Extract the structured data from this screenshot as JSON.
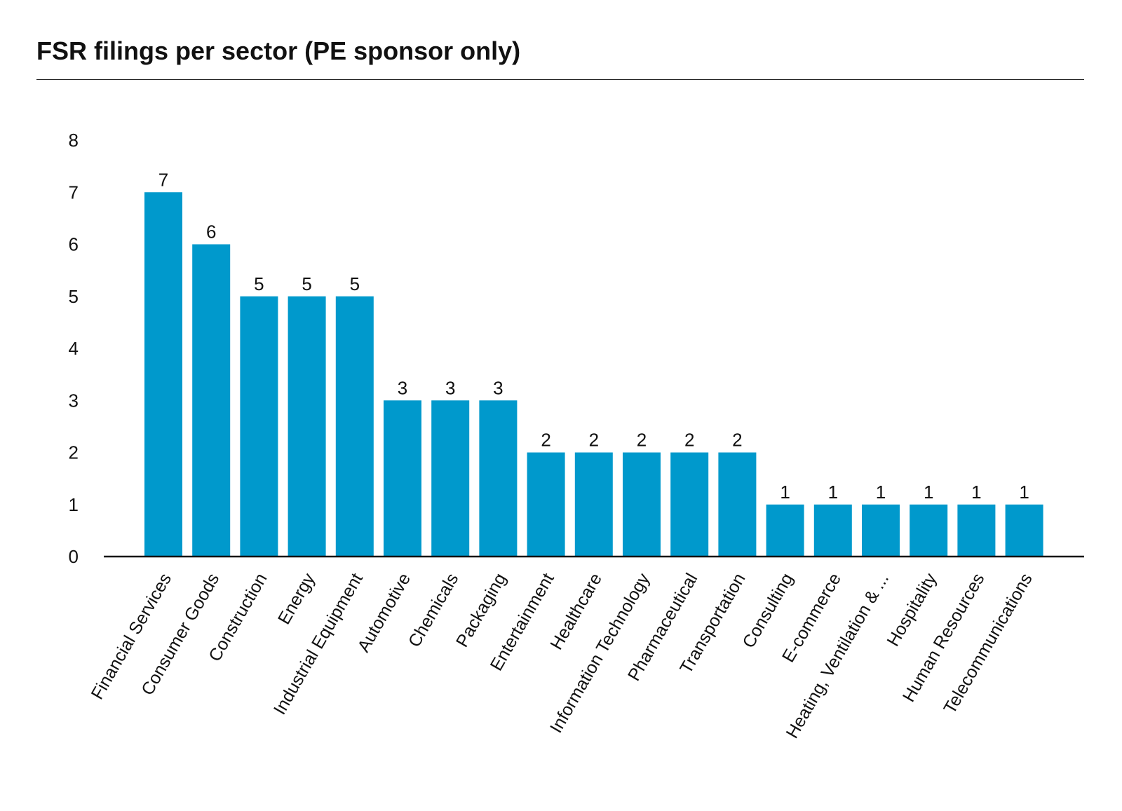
{
  "chart_data": {
    "type": "bar",
    "title": "FSR filings per sector (PE sponsor only)",
    "xlabel": "",
    "ylabel": "",
    "categories": [
      "Financial Services",
      "Consumer Goods",
      "Construction",
      "Energy",
      "Industrial Equipment",
      "Automotive",
      "Chemicals",
      "Packaging",
      "Entertainment",
      "Healthcare",
      "Information Technology",
      "Pharmaceutical",
      "Transportation",
      "Consulting",
      "E-commerce",
      "Heating, Ventilation & ...",
      "Hospitality",
      "Human Resources",
      "Telecommunications"
    ],
    "values": [
      7,
      6,
      5,
      5,
      5,
      3,
      3,
      3,
      2,
      2,
      2,
      2,
      2,
      1,
      1,
      1,
      1,
      1,
      1
    ],
    "ylim": [
      0,
      8
    ],
    "yticks": [
      "0",
      "1",
      "2",
      "3",
      "4",
      "5",
      "6",
      "7",
      "8"
    ],
    "grid": false,
    "legend": "none",
    "bar_color": "#0099cc",
    "data_labels": true
  }
}
